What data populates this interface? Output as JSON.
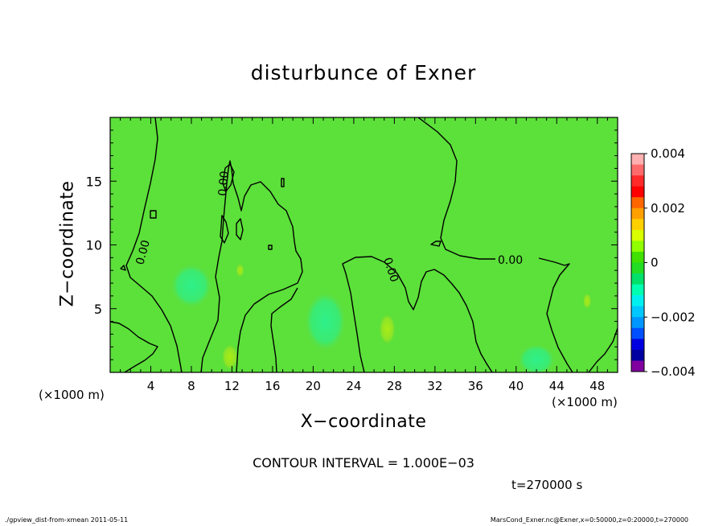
{
  "chart_data": {
    "type": "contour",
    "title": "disturbunce of Exner",
    "xlabel": "X−coordinate",
    "ylabel": "Z−coordinate",
    "x_unit_label": "(×1000 m)",
    "y_unit_label": "(×1000 m)",
    "xlim": [
      0,
      50
    ],
    "ylim": [
      0,
      20
    ],
    "x_ticks": [
      4,
      8,
      12,
      16,
      20,
      24,
      28,
      32,
      36,
      40,
      44,
      48
    ],
    "y_ticks": [
      5,
      10,
      15
    ],
    "background_value": 0.0,
    "contour_label": "0.00",
    "contour_interval_text": "CONTOUR INTERVAL = 1.000E−03",
    "colorbar": {
      "min": -0.004,
      "max": 0.004,
      "tick_labels": [
        "0.004",
        "0.002",
        "0",
        "−0.002",
        "−0.004"
      ],
      "tick_values": [
        0.004,
        0.002,
        0,
        -0.002,
        -0.004
      ],
      "colors": [
        "#ffb0b0",
        "#ff6b6b",
        "#ff2a2a",
        "#ff0000",
        "#ff6600",
        "#ffa000",
        "#ffd000",
        "#d8ff00",
        "#90ff00",
        "#40e000",
        "#22dd22",
        "#00e06a",
        "#00ffb0",
        "#00f0f0",
        "#00c8ff",
        "#0096ff",
        "#0050ff",
        "#0000e0",
        "#0000a0",
        "#8000a0"
      ]
    },
    "features": [
      {
        "type": "positive_patch",
        "x": 11.8,
        "z": 1.2,
        "rx": 0.8,
        "rz": 1.0
      },
      {
        "type": "positive_patch",
        "x": 27.3,
        "z": 3.4,
        "rx": 0.8,
        "rz": 1.2
      },
      {
        "type": "positive_patch",
        "x": 12.8,
        "z": 8.0,
        "rx": 0.4,
        "rz": 0.5
      },
      {
        "type": "positive_patch",
        "x": 47.0,
        "z": 5.6,
        "rx": 0.4,
        "rz": 0.6
      },
      {
        "type": "negative_patch",
        "x": 8.0,
        "z": 6.8,
        "rx": 2.0,
        "rz": 1.7
      },
      {
        "type": "negative_patch",
        "x": 21.2,
        "z": 4.0,
        "rx": 2.0,
        "rz": 2.3
      },
      {
        "type": "negative_patch",
        "x": 42.0,
        "z": 1.0,
        "rx": 1.8,
        "rz": 1.2
      }
    ],
    "time_label": "t=270000 s"
  },
  "footer": {
    "left": "./gpview_dist-from-xmean  2011-05-11",
    "right": "MarsCond_Exner.nc@Exner,x=0:50000,z=0:20000,t=270000"
  }
}
